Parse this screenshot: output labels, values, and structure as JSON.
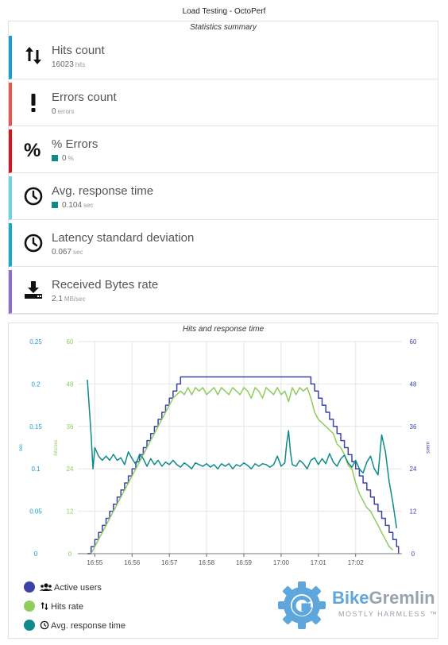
{
  "page_title": "Load Testing - OctoPerf",
  "summary": {
    "title": "Statistics summary",
    "stats": [
      {
        "name": "hits",
        "label": "Hits count",
        "value": "16023",
        "unit": "hits",
        "color": "#1a9dcf",
        "icon": "sort-arrows-icon",
        "square": false
      },
      {
        "name": "errors",
        "label": "Errors count",
        "value": "0",
        "unit": "errors",
        "color": "#e8574f",
        "icon": "exclamation-icon",
        "square": false
      },
      {
        "name": "pct-errors",
        "label": "% Errors",
        "value": "0",
        "unit": "%",
        "color": "#d9141f",
        "icon": "percent-icon",
        "square": true
      },
      {
        "name": "avg-response",
        "label": "Avg. response time",
        "value": "0.104",
        "unit": "sec",
        "color": "#6fd2df",
        "icon": "clock-icon",
        "square": true
      },
      {
        "name": "latency",
        "label": "Latency standard deviation",
        "value": "0.067",
        "unit": "sec",
        "color": "#19a9c7",
        "icon": "clock-icon",
        "square": false
      },
      {
        "name": "bytes",
        "label": "Received Bytes rate",
        "value": "2.1",
        "unit": "MB/sec",
        "color": "#8a6fd0",
        "icon": "download-icon",
        "square": false
      }
    ]
  },
  "chart": {
    "title": "Hits and response time",
    "left_axis_label": "sec",
    "mid_axis_label": "hits/sec",
    "right_axis_label": "users"
  },
  "chart_data": {
    "type": "line",
    "title": "Hits and response time",
    "x_ticks": [
      "16:55",
      "16:56",
      "16:57",
      "16:58",
      "16:59",
      "17:00",
      "17:01",
      "17:02"
    ],
    "y_sec_ticks": [
      "0",
      "0.05",
      "0.1",
      "0.15",
      "0.2",
      "0.25"
    ],
    "y_hits_ticks": [
      "0",
      "12",
      "24",
      "36",
      "48",
      "60"
    ],
    "y_users_ticks": [
      "0",
      "12",
      "24",
      "36",
      "48",
      "60"
    ],
    "ylim_sec": [
      0,
      0.25
    ],
    "ylim_hits": [
      0,
      60
    ],
    "ylim_users": [
      0,
      60
    ],
    "grid": true,
    "colors": {
      "users": "#3b43a8",
      "hits": "#8fcc5e",
      "response": "#0f8a8a"
    },
    "series": [
      {
        "name": "Active users",
        "axis": "users",
        "points": [
          [
            0,
            0
          ],
          [
            0.05,
            0
          ],
          [
            0.1,
            2
          ],
          [
            0.2,
            4
          ],
          [
            0.3,
            6
          ],
          [
            0.4,
            8
          ],
          [
            0.5,
            10
          ],
          [
            0.6,
            12
          ],
          [
            0.7,
            14
          ],
          [
            0.8,
            16
          ],
          [
            0.9,
            18
          ],
          [
            1.0,
            20
          ],
          [
            1.1,
            22
          ],
          [
            1.2,
            24
          ],
          [
            1.3,
            26
          ],
          [
            1.4,
            28
          ],
          [
            1.5,
            30
          ],
          [
            1.6,
            32
          ],
          [
            1.7,
            34
          ],
          [
            1.8,
            36
          ],
          [
            1.9,
            38
          ],
          [
            2.0,
            40
          ],
          [
            2.1,
            42
          ],
          [
            2.2,
            44
          ],
          [
            2.3,
            46
          ],
          [
            2.4,
            48
          ],
          [
            2.5,
            50
          ],
          [
            5.95,
            50
          ],
          [
            6.0,
            48
          ],
          [
            6.1,
            46
          ],
          [
            6.2,
            44
          ],
          [
            6.3,
            42
          ],
          [
            6.4,
            40
          ],
          [
            6.5,
            38
          ],
          [
            6.6,
            36
          ],
          [
            6.7,
            34
          ],
          [
            6.8,
            32
          ],
          [
            6.9,
            30
          ],
          [
            7.0,
            28
          ],
          [
            7.1,
            26
          ],
          [
            7.2,
            24
          ],
          [
            7.3,
            22
          ],
          [
            7.4,
            20
          ],
          [
            7.5,
            18
          ],
          [
            7.6,
            16
          ],
          [
            7.7,
            14
          ],
          [
            7.8,
            12
          ],
          [
            7.9,
            10
          ],
          [
            8.0,
            8
          ],
          [
            8.1,
            6
          ],
          [
            8.2,
            4
          ],
          [
            8.3,
            2
          ],
          [
            8.35,
            0
          ]
        ]
      },
      {
        "name": "Hits rate",
        "axis": "hits",
        "points": [
          [
            0.1,
            0
          ],
          [
            0.3,
            4
          ],
          [
            0.5,
            8
          ],
          [
            0.7,
            12
          ],
          [
            0.9,
            16
          ],
          [
            1.1,
            20
          ],
          [
            1.3,
            24
          ],
          [
            1.5,
            28
          ],
          [
            1.7,
            32
          ],
          [
            1.9,
            36
          ],
          [
            2.1,
            40
          ],
          [
            2.3,
            44
          ],
          [
            2.5,
            46
          ],
          [
            2.6,
            45
          ],
          [
            2.7,
            47
          ],
          [
            2.8,
            45
          ],
          [
            2.9,
            47
          ],
          [
            3.0,
            46
          ],
          [
            3.1,
            47
          ],
          [
            3.2,
            45
          ],
          [
            3.3,
            46
          ],
          [
            3.4,
            47
          ],
          [
            3.5,
            45
          ],
          [
            3.6,
            47
          ],
          [
            3.7,
            46
          ],
          [
            3.8,
            45
          ],
          [
            3.9,
            47
          ],
          [
            4.0,
            46
          ],
          [
            4.1,
            45
          ],
          [
            4.2,
            47
          ],
          [
            4.3,
            46
          ],
          [
            4.4,
            44
          ],
          [
            4.5,
            47
          ],
          [
            4.6,
            46
          ],
          [
            4.7,
            44
          ],
          [
            4.8,
            47
          ],
          [
            4.9,
            46
          ],
          [
            5.0,
            45
          ],
          [
            5.1,
            47
          ],
          [
            5.2,
            45
          ],
          [
            5.3,
            46
          ],
          [
            5.4,
            43
          ],
          [
            5.5,
            47
          ],
          [
            5.6,
            45
          ],
          [
            5.7,
            47
          ],
          [
            5.8,
            46
          ],
          [
            5.9,
            47
          ],
          [
            6.0,
            44
          ],
          [
            6.1,
            40
          ],
          [
            6.2,
            38
          ],
          [
            6.3,
            37
          ],
          [
            6.4,
            36
          ],
          [
            6.5,
            35
          ],
          [
            6.6,
            34
          ],
          [
            6.7,
            31
          ],
          [
            6.8,
            30
          ],
          [
            6.9,
            28
          ],
          [
            7.0,
            25
          ],
          [
            7.1,
            24
          ],
          [
            7.2,
            20
          ],
          [
            7.3,
            17
          ],
          [
            7.4,
            15
          ],
          [
            7.5,
            13
          ],
          [
            7.6,
            12
          ],
          [
            7.7,
            10
          ],
          [
            7.8,
            8
          ],
          [
            7.9,
            6
          ],
          [
            8.0,
            4
          ],
          [
            8.1,
            2
          ],
          [
            8.2,
            1
          ]
        ]
      },
      {
        "name": "Avg. response time",
        "axis": "sec",
        "points": [
          [
            0,
            0.205
          ],
          [
            0.1,
            0.14
          ],
          [
            0.15,
            0.1
          ],
          [
            0.2,
            0.125
          ],
          [
            0.3,
            0.115
          ],
          [
            0.4,
            0.11
          ],
          [
            0.5,
            0.115
          ],
          [
            0.6,
            0.11
          ],
          [
            0.7,
            0.117
          ],
          [
            0.8,
            0.11
          ],
          [
            0.9,
            0.113
          ],
          [
            1.0,
            0.105
          ],
          [
            1.1,
            0.12
          ],
          [
            1.2,
            0.112
          ],
          [
            1.3,
            0.105
          ],
          [
            1.4,
            0.117
          ],
          [
            1.5,
            0.112
          ],
          [
            1.6,
            0.103
          ],
          [
            1.7,
            0.112
          ],
          [
            1.8,
            0.105
          ],
          [
            1.9,
            0.11
          ],
          [
            2.0,
            0.103
          ],
          [
            2.1,
            0.108
          ],
          [
            2.2,
            0.105
          ],
          [
            2.3,
            0.11
          ],
          [
            2.4,
            0.105
          ],
          [
            2.5,
            0.102
          ],
          [
            2.6,
            0.107
          ],
          [
            2.7,
            0.104
          ],
          [
            2.8,
            0.1
          ],
          [
            2.9,
            0.107
          ],
          [
            3.0,
            0.105
          ],
          [
            3.1,
            0.103
          ],
          [
            3.2,
            0.106
          ],
          [
            3.3,
            0.102
          ],
          [
            3.4,
            0.105
          ],
          [
            3.5,
            0.1
          ],
          [
            3.6,
            0.106
          ],
          [
            3.7,
            0.103
          ],
          [
            3.8,
            0.106
          ],
          [
            3.9,
            0.1
          ],
          [
            4.0,
            0.105
          ],
          [
            4.1,
            0.103
          ],
          [
            4.2,
            0.107
          ],
          [
            4.3,
            0.104
          ],
          [
            4.4,
            0.1
          ],
          [
            4.5,
            0.106
          ],
          [
            4.6,
            0.103
          ],
          [
            4.7,
            0.106
          ],
          [
            4.8,
            0.105
          ],
          [
            4.9,
            0.102
          ],
          [
            5.0,
            0.105
          ],
          [
            5.1,
            0.115
          ],
          [
            5.2,
            0.103
          ],
          [
            5.3,
            0.107
          ],
          [
            5.35,
            0.13
          ],
          [
            5.4,
            0.145
          ],
          [
            5.45,
            0.12
          ],
          [
            5.5,
            0.105
          ],
          [
            5.6,
            0.103
          ],
          [
            5.7,
            0.11
          ],
          [
            5.8,
            0.106
          ],
          [
            5.9,
            0.1
          ],
          [
            6.0,
            0.11
          ],
          [
            6.1,
            0.113
          ],
          [
            6.2,
            0.105
          ],
          [
            6.3,
            0.112
          ],
          [
            6.4,
            0.106
          ],
          [
            6.5,
            0.118
          ],
          [
            6.6,
            0.108
          ],
          [
            6.7,
            0.103
          ],
          [
            6.8,
            0.112
          ],
          [
            6.9,
            0.116
          ],
          [
            7.0,
            0.107
          ],
          [
            7.1,
            0.102
          ],
          [
            7.2,
            0.11
          ],
          [
            7.3,
            0.1
          ],
          [
            7.4,
            0.095
          ],
          [
            7.5,
            0.108
          ],
          [
            7.6,
            0.115
          ],
          [
            7.7,
            0.1
          ],
          [
            7.8,
            0.093
          ],
          [
            7.9,
            0.14
          ],
          [
            8.0,
            0.12
          ],
          [
            8.1,
            0.085
          ],
          [
            8.2,
            0.06
          ],
          [
            8.3,
            0.03
          ]
        ]
      }
    ]
  },
  "legend": [
    {
      "label": "Active users",
      "color": "#3b43a8"
    },
    {
      "label": "Hits rate",
      "color": "#8fcc5e"
    },
    {
      "label": "Avg. response time",
      "color": "#0f8a8a"
    }
  ],
  "watermark": {
    "brand_a": "Bike",
    "brand_b": "Gremlin",
    "tagline": "MOSTLY HARMLESS ™"
  }
}
